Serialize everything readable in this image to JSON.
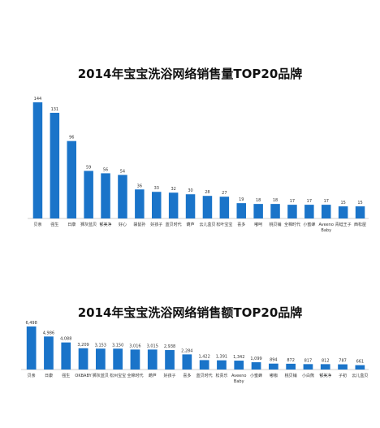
{
  "chart_data": [
    {
      "type": "bar",
      "title": "2014年宝宝洗浴网络销售量TOP20品牌",
      "color": "#1a74c9",
      "categories": [
        [
          "贝亲"
        ],
        [
          "强生"
        ],
        [
          "日康"
        ],
        [
          "狮灰蓝贝"
        ],
        [
          "郁美净"
        ],
        [
          "好心"
        ],
        [
          "袋鼠孙"
        ],
        [
          "好孩子"
        ],
        [
          "蓝贝时代"
        ],
        [
          "葫芦"
        ],
        [
          "云儿盒贝"
        ],
        [
          "松叶宝宝"
        ],
        [
          "喜多"
        ],
        [
          "嘟呵"
        ],
        [
          "桃贝铺"
        ],
        [
          "全棉时代"
        ],
        [
          "小蜜蜂"
        ],
        [
          "Aveeno",
          "Baby"
        ],
        [
          "青蛙王子"
        ],
        [
          "西松屋"
        ]
      ],
      "values": [
        144,
        131,
        96,
        59,
        56,
        54,
        36,
        33,
        32,
        30,
        28,
        27,
        19,
        18,
        18,
        17,
        17,
        17,
        15,
        15
      ]
    },
    {
      "type": "bar",
      "title": "2014年宝宝洗浴网络销售额TOP20品牌",
      "color": "#1a74c9",
      "categories": [
        [
          "贝亲"
        ],
        [
          "日康"
        ],
        [
          "强生"
        ],
        [
          "OKBABY"
        ],
        [
          "狮灰蓝贝"
        ],
        [
          "松州宝宝"
        ],
        [
          "全棉时代"
        ],
        [
          "葫芦"
        ],
        [
          "好孩子"
        ],
        [
          "喜多"
        ],
        [
          "蓝贝时代"
        ],
        [
          "松贵乐"
        ],
        [
          "Aveeno",
          "Baby"
        ],
        [
          "小蜜蜂"
        ],
        [
          "嘟咖"
        ],
        [
          "桃贝铺"
        ],
        [
          "小白熊"
        ],
        [
          "郁美净"
        ],
        [
          "子初"
        ],
        [
          "云儿盒贝"
        ]
      ],
      "values": [
        6498,
        4986,
        4088,
        3209,
        3153,
        3150,
        3016,
        3015,
        2938,
        2284,
        1422,
        1391,
        1342,
        1099,
        894,
        872,
        817,
        812,
        787,
        661
      ],
      "value_labels": [
        "6,498",
        "4,986",
        "4,088",
        "3,209",
        "3,153",
        "3,150",
        "3,016",
        "3,015",
        "2,938",
        "2,284",
        "1,422",
        "1,391",
        "1,342",
        "1,099",
        "894",
        "872",
        "817",
        "812",
        "787",
        "661"
      ]
    }
  ]
}
